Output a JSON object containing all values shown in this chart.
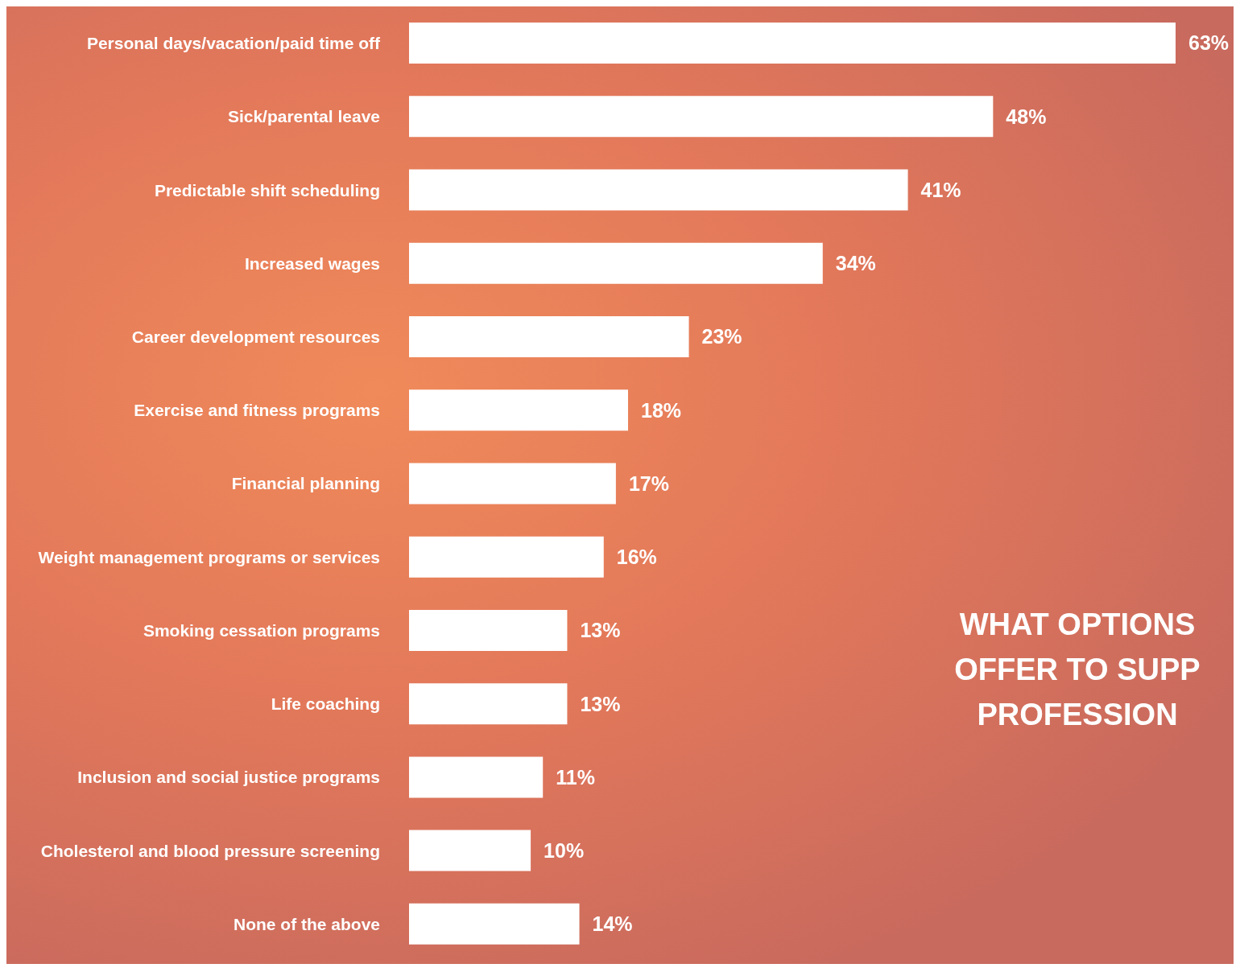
{
  "chart_data": {
    "type": "bar",
    "orientation": "horizontal",
    "title": "WHAT OPTIONS\nOFFER TO SUPP\nPROFESSION",
    "categories": [
      "Personal days/vacation/paid time off",
      "Sick/parental leave",
      "Predictable shift scheduling",
      "Increased wages",
      "Career development resources",
      "Exercise and fitness programs",
      "Financial planning",
      "Weight management programs or services",
      "Smoking cessation programs",
      "Life coaching",
      "Inclusion and social justice programs",
      "Cholesterol and blood pressure screening",
      "None of the above"
    ],
    "values": [
      63,
      48,
      41,
      34,
      23,
      18,
      17,
      16,
      13,
      13,
      11,
      10,
      14
    ],
    "value_labels": [
      "63%",
      "48%",
      "41%",
      "34%",
      "23%",
      "18%",
      "17%",
      "16%",
      "13%",
      "13%",
      "11%",
      "10%",
      "14%"
    ],
    "color": "#ffffff",
    "grid": false,
    "legend": false
  }
}
